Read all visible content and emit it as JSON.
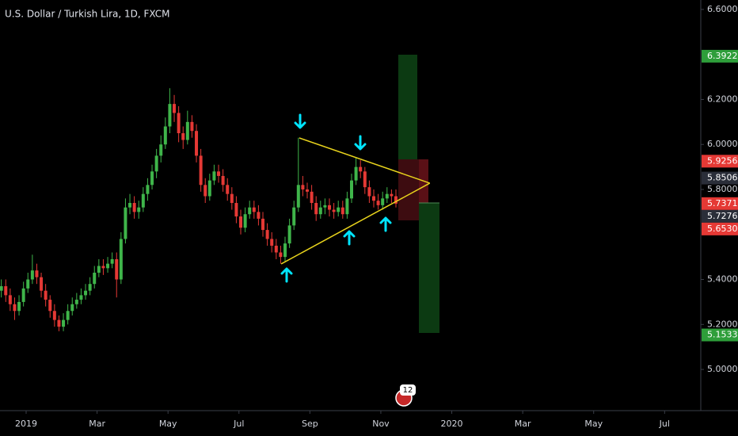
{
  "chart_data": {
    "type": "candlestick",
    "title": "U.S. Dollar / Turkish Lira, 1D, FXCM",
    "up_color": "#3fb54a",
    "down_color": "#e53935",
    "x": [
      -0.7,
      -0.575,
      -0.45,
      -0.325,
      -0.2,
      -0.075,
      0.05,
      0.175,
      0.3,
      0.425,
      0.55,
      0.675,
      0.8,
      0.925,
      1.05,
      1.175,
      1.3,
      1.425,
      1.55,
      1.675,
      1.8,
      1.925,
      2.05,
      2.175,
      2.3,
      2.425,
      2.55,
      2.675,
      2.8,
      2.925,
      3.05,
      3.175,
      3.3,
      3.425,
      3.55,
      3.675,
      3.8,
      3.925,
      4.05,
      4.175,
      4.3,
      4.425,
      4.55,
      4.675,
      4.8,
      4.925,
      5.05,
      5.175,
      5.3,
      5.425,
      5.55,
      5.675,
      5.8,
      5.925,
      6.05,
      6.175,
      6.3,
      6.425,
      6.55,
      6.675,
      6.8,
      6.925,
      7.05,
      7.175,
      7.3,
      7.425,
      7.55,
      7.675,
      7.8,
      7.925,
      8.05,
      8.175,
      8.3,
      8.425,
      8.55,
      8.675,
      8.8,
      8.925,
      9.05,
      9.175,
      9.3,
      9.425,
      9.55,
      9.675,
      9.8,
      9.925,
      10.05,
      10.175,
      10.3,
      10.425
    ],
    "open": [
      5.35,
      5.37,
      5.33,
      5.29,
      5.26,
      5.3,
      5.36,
      5.4,
      5.44,
      5.41,
      5.35,
      5.31,
      5.26,
      5.22,
      5.19,
      5.22,
      5.26,
      5.29,
      5.31,
      5.33,
      5.35,
      5.38,
      5.43,
      5.46,
      5.45,
      5.47,
      5.49,
      5.4,
      5.58,
      5.72,
      5.74,
      5.7,
      5.72,
      5.78,
      5.82,
      5.88,
      5.95,
      6.0,
      6.08,
      6.18,
      6.14,
      6.05,
      6.02,
      6.1,
      6.06,
      5.95,
      5.82,
      5.77,
      5.84,
      5.88,
      5.86,
      5.82,
      5.78,
      5.74,
      5.68,
      5.63,
      5.69,
      5.72,
      5.7,
      5.67,
      5.62,
      5.58,
      5.55,
      5.52,
      5.5,
      5.56,
      5.64,
      5.72,
      5.82,
      5.8,
      5.79,
      5.74,
      5.69,
      5.72,
      5.73,
      5.71,
      5.7,
      5.72,
      5.69,
      5.76,
      5.84,
      5.9,
      5.88,
      5.81,
      5.77,
      5.75,
      5.73,
      5.76,
      5.78,
      5.77
    ],
    "high": [
      5.4,
      5.4,
      5.36,
      5.32,
      5.33,
      5.39,
      5.43,
      5.51,
      5.47,
      5.43,
      5.38,
      5.33,
      5.29,
      5.24,
      5.25,
      5.29,
      5.32,
      5.34,
      5.36,
      5.38,
      5.41,
      5.46,
      5.49,
      5.49,
      5.5,
      5.52,
      5.52,
      5.61,
      5.76,
      5.78,
      5.77,
      5.75,
      5.81,
      5.85,
      5.91,
      5.98,
      6.04,
      6.12,
      6.25,
      6.22,
      6.17,
      6.08,
      6.15,
      6.13,
      6.09,
      5.98,
      5.85,
      5.87,
      5.91,
      5.91,
      5.89,
      5.85,
      5.81,
      5.77,
      5.71,
      5.72,
      5.75,
      5.75,
      5.73,
      5.7,
      5.65,
      5.61,
      5.58,
      5.55,
      5.59,
      5.67,
      5.75,
      6.03,
      5.86,
      5.83,
      5.82,
      5.77,
      5.75,
      5.76,
      5.76,
      5.74,
      5.75,
      5.75,
      5.79,
      5.87,
      5.94,
      5.93,
      5.9,
      5.84,
      5.8,
      5.78,
      5.79,
      5.81,
      5.8,
      5.8
    ],
    "low": [
      5.32,
      5.3,
      5.26,
      5.22,
      5.24,
      5.28,
      5.34,
      5.38,
      5.38,
      5.32,
      5.28,
      5.23,
      5.19,
      5.17,
      5.17,
      5.2,
      5.24,
      5.27,
      5.29,
      5.31,
      5.33,
      5.36,
      5.41,
      5.42,
      5.43,
      5.45,
      5.32,
      5.38,
      5.56,
      5.69,
      5.67,
      5.67,
      5.7,
      5.75,
      5.8,
      5.85,
      5.92,
      5.98,
      6.05,
      6.1,
      6.01,
      5.98,
      6.0,
      6.03,
      5.92,
      5.79,
      5.74,
      5.75,
      5.82,
      5.83,
      5.79,
      5.75,
      5.71,
      5.65,
      5.6,
      5.61,
      5.67,
      5.67,
      5.64,
      5.59,
      5.55,
      5.52,
      5.49,
      5.47,
      5.48,
      5.54,
      5.62,
      5.7,
      5.77,
      5.76,
      5.71,
      5.66,
      5.67,
      5.69,
      5.68,
      5.67,
      5.68,
      5.67,
      5.67,
      5.74,
      5.82,
      5.85,
      5.78,
      5.74,
      5.72,
      5.71,
      5.71,
      5.74,
      5.74,
      5.72
    ],
    "close": [
      5.37,
      5.33,
      5.29,
      5.26,
      5.3,
      5.36,
      5.4,
      5.44,
      5.41,
      5.35,
      5.31,
      5.26,
      5.22,
      5.19,
      5.22,
      5.26,
      5.29,
      5.31,
      5.33,
      5.35,
      5.38,
      5.43,
      5.46,
      5.45,
      5.47,
      5.49,
      5.4,
      5.58,
      5.72,
      5.74,
      5.7,
      5.72,
      5.78,
      5.82,
      5.88,
      5.95,
      6.0,
      6.08,
      6.18,
      6.14,
      6.05,
      6.02,
      6.1,
      6.06,
      5.95,
      5.82,
      5.77,
      5.84,
      5.88,
      5.86,
      5.82,
      5.78,
      5.74,
      5.68,
      5.63,
      5.69,
      5.72,
      5.7,
      5.67,
      5.62,
      5.58,
      5.55,
      5.52,
      5.5,
      5.56,
      5.64,
      5.72,
      5.82,
      5.8,
      5.79,
      5.74,
      5.69,
      5.72,
      5.73,
      5.71,
      5.7,
      5.72,
      5.69,
      5.76,
      5.84,
      5.9,
      5.88,
      5.81,
      5.77,
      5.75,
      5.73,
      5.76,
      5.78,
      5.77,
      5.737
    ],
    "xlim": [
      -0.737,
      19.02
    ],
    "ylim": [
      4.817,
      6.642
    ],
    "xticks": [
      {
        "value": 0,
        "label": "2019"
      },
      {
        "value": 2,
        "label": "Mar"
      },
      {
        "value": 4,
        "label": "May"
      },
      {
        "value": 6,
        "label": "Jul"
      },
      {
        "value": 8,
        "label": "Sep"
      },
      {
        "value": 10,
        "label": "Nov"
      },
      {
        "value": 12,
        "label": "2020"
      },
      {
        "value": 14,
        "label": "Mar"
      },
      {
        "value": 16,
        "label": "May"
      },
      {
        "value": 18,
        "label": "Jul"
      }
    ],
    "yticks": [
      {
        "value": 6.6,
        "label": "6.60000"
      },
      {
        "value": 6.2,
        "label": "6.20000"
      },
      {
        "value": 6.0,
        "label": "6.00000"
      },
      {
        "value": 5.8,
        "label": "5.80000"
      },
      {
        "value": 5.4,
        "label": "5.40000"
      },
      {
        "value": 5.2,
        "label": "5.20000"
      },
      {
        "value": 5.0,
        "label": "5.00000"
      }
    ],
    "grid": false,
    "trendlines": [
      {
        "color": "#e8d31c",
        "x": [
          7.7,
          11.38
        ],
        "y": [
          6.029,
          5.828
        ]
      },
      {
        "color": "#e8d31c",
        "x": [
          7.19,
          11.38
        ],
        "y": [
          5.469,
          5.828
        ]
      }
    ],
    "price_labels": [
      {
        "value": 6.39221,
        "color": "#2e9e3a"
      },
      {
        "value": 5.92563,
        "color": "#e53935"
      },
      {
        "value": 5.85065,
        "color": "#2a2e39"
      },
      {
        "value": 5.7371,
        "color": "#e53935"
      },
      {
        "value": 5.72761,
        "color": "#2a2e39"
      },
      {
        "value": 5.65303,
        "color": "#e53935"
      },
      {
        "value": 5.15335,
        "color": "#2e9e3a"
      }
    ],
    "badge": "12"
  }
}
